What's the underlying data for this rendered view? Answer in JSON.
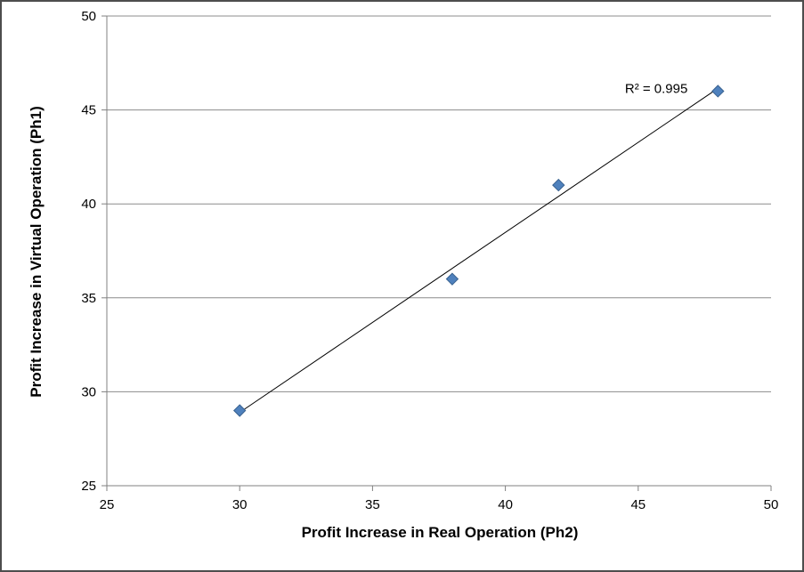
{
  "chart_data": {
    "type": "scatter",
    "title": "",
    "xlabel": "Profit Increase  in Real Operation (Ph2)",
    "ylabel": "Profit Increase  in Virtual Operation (Ph1)",
    "xlim": [
      25,
      50
    ],
    "ylim": [
      25,
      50
    ],
    "xticks": [
      25,
      30,
      35,
      40,
      45,
      50
    ],
    "yticks": [
      25,
      30,
      35,
      40,
      45,
      50
    ],
    "grid": "horizontal",
    "legend": "none",
    "series": [
      {
        "name": "profit-increase-points",
        "marker": "diamond",
        "marker_color": "#4f81bd",
        "marker_edge_color": "#38618f",
        "points": [
          {
            "x": 30,
            "y": 29
          },
          {
            "x": 38,
            "y": 36
          },
          {
            "x": 42,
            "y": 41
          },
          {
            "x": 48,
            "y": 46
          }
        ]
      }
    ],
    "trendline": {
      "x1": 30,
      "y1": 28.9,
      "x2": 48,
      "y2": 46.15,
      "color": "#000000",
      "label": "R² = 0.995",
      "label_x": 44.5,
      "label_y": 45.9
    },
    "colors": {
      "axis": "#808080",
      "gridline": "#8c8c8c",
      "text": "#000000"
    }
  }
}
